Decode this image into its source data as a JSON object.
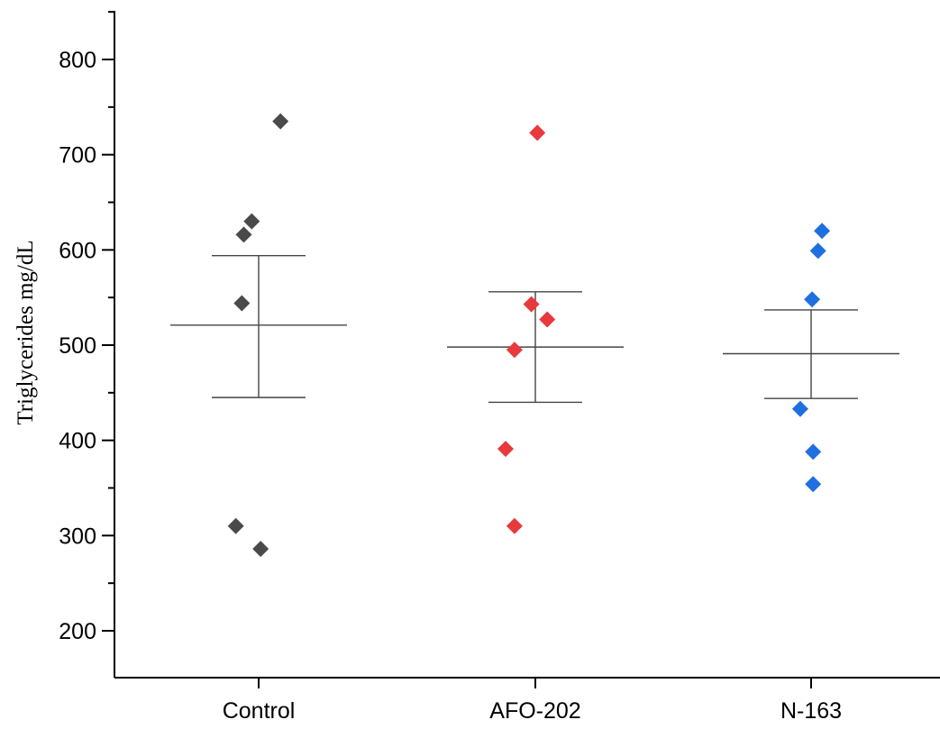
{
  "chart_data": {
    "type": "scatter",
    "ylabel": "Triglycerides mg/dL",
    "xlabel": "",
    "ylim": [
      150,
      850
    ],
    "yticks": [
      200,
      300,
      400,
      500,
      600,
      700,
      800
    ],
    "categories": [
      "Control",
      "AFO-202",
      "N-163"
    ],
    "series": [
      {
        "category": "Control",
        "color": "#4a4a4a",
        "points": [
          {
            "offset": -0.23,
            "y": 310
          },
          {
            "offset": 0.02,
            "y": 286
          },
          {
            "offset": -0.15,
            "y": 616
          },
          {
            "offset": -0.07,
            "y": 630
          },
          {
            "offset": 0.22,
            "y": 735
          },
          {
            "offset": -0.17,
            "y": 544
          }
        ],
        "mean": 521,
        "err_upper": 594,
        "err_lower": 445
      },
      {
        "category": "AFO-202",
        "color": "#e8393c",
        "points": [
          {
            "offset": -0.21,
            "y": 310
          },
          {
            "offset": -0.3,
            "y": 391
          },
          {
            "offset": -0.21,
            "y": 495
          },
          {
            "offset": -0.04,
            "y": 543
          },
          {
            "offset": 0.12,
            "y": 527
          },
          {
            "offset": 0.02,
            "y": 723
          }
        ],
        "mean": 498,
        "err_upper": 556,
        "err_lower": 440
      },
      {
        "category": "N-163",
        "color": "#1f6fe0",
        "points": [
          {
            "offset": 0.02,
            "y": 354
          },
          {
            "offset": 0.02,
            "y": 388
          },
          {
            "offset": -0.11,
            "y": 433
          },
          {
            "offset": 0.01,
            "y": 548
          },
          {
            "offset": 0.07,
            "y": 599
          },
          {
            "offset": 0.11,
            "y": 620
          }
        ],
        "mean": 491,
        "err_upper": 537,
        "err_lower": 444
      }
    ]
  }
}
